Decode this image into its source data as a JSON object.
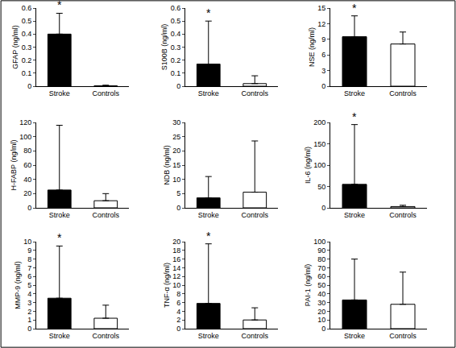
{
  "chart_data": [
    {
      "type": "bar",
      "y_label": "GFAP (ng/ml)",
      "categories": [
        "Stroke",
        "Controls"
      ],
      "values": [
        0.4,
        0.003
      ],
      "errors": [
        0.16,
        0.005
      ],
      "colors": [
        "#000000",
        "#ffffff"
      ],
      "ylim": [
        0,
        0.6
      ],
      "yticks": [
        0,
        0.1,
        0.2,
        0.3,
        0.4,
        0.5,
        0.6
      ],
      "annotations": [
        {
          "category": "Stroke",
          "text": "*"
        }
      ]
    },
    {
      "type": "bar",
      "y_label": "S100B (ng/ml)",
      "categories": [
        "Stroke",
        "Controls"
      ],
      "values": [
        0.17,
        0.02
      ],
      "errors": [
        0.33,
        0.06
      ],
      "colors": [
        "#000000",
        "#ffffff"
      ],
      "ylim": [
        0,
        0.6
      ],
      "yticks": [
        0,
        0.1,
        0.2,
        0.3,
        0.4,
        0.5,
        0.6
      ],
      "annotations": [
        {
          "category": "Stroke",
          "text": "*"
        }
      ]
    },
    {
      "type": "bar",
      "y_label": "NSE (ng/ml)",
      "categories": [
        "Stroke",
        "Controls"
      ],
      "values": [
        9.5,
        8.1
      ],
      "errors": [
        4.0,
        2.3
      ],
      "colors": [
        "#000000",
        "#ffffff"
      ],
      "ylim": [
        0,
        15
      ],
      "yticks": [
        0,
        3,
        6,
        9,
        12,
        15
      ],
      "annotations": [
        {
          "category": "Stroke",
          "text": "*"
        }
      ]
    },
    {
      "type": "bar",
      "y_label": "H-FABP (ng/ml)",
      "categories": [
        "Stroke",
        "Controls"
      ],
      "values": [
        25,
        10
      ],
      "errors": [
        91,
        10
      ],
      "colors": [
        "#000000",
        "#ffffff"
      ],
      "ylim": [
        0,
        120
      ],
      "yticks": [
        0,
        20,
        40,
        60,
        80,
        100,
        120
      ],
      "annotations": []
    },
    {
      "type": "bar",
      "y_label": "NDB (ng/ml)",
      "categories": [
        "Stroke",
        "Controls"
      ],
      "values": [
        3.5,
        5.5
      ],
      "errors": [
        7.5,
        18
      ],
      "colors": [
        "#000000",
        "#ffffff"
      ],
      "ylim": [
        0,
        30
      ],
      "yticks": [
        0,
        5,
        10,
        15,
        20,
        25,
        30
      ],
      "annotations": []
    },
    {
      "type": "bar",
      "y_label": "IL-6 (ng/ml)",
      "categories": [
        "Stroke",
        "Controls"
      ],
      "values": [
        55,
        3
      ],
      "errors": [
        140,
        3
      ],
      "colors": [
        "#000000",
        "#ffffff"
      ],
      "ylim": [
        0,
        200
      ],
      "yticks": [
        0,
        50,
        100,
        150,
        200
      ],
      "annotations": [
        {
          "category": "Stroke",
          "text": "*"
        }
      ]
    },
    {
      "type": "bar",
      "y_label": "MMP-9 (ng/ml)",
      "categories": [
        "Stroke",
        "Controls"
      ],
      "values": [
        3.5,
        1.2
      ],
      "errors": [
        6.0,
        1.5
      ],
      "colors": [
        "#000000",
        "#ffffff"
      ],
      "ylim": [
        0,
        10
      ],
      "yticks": [
        0,
        1,
        2,
        3,
        4,
        5,
        6,
        7,
        8,
        9,
        10
      ],
      "annotations": [
        {
          "category": "Stroke",
          "text": "*"
        }
      ]
    },
    {
      "type": "bar",
      "y_label": "TNF-α (ng/ml)",
      "categories": [
        "Stroke",
        "Controls"
      ],
      "values": [
        5.8,
        2.0
      ],
      "errors": [
        13.7,
        2.8
      ],
      "colors": [
        "#000000",
        "#ffffff"
      ],
      "ylim": [
        0,
        20
      ],
      "yticks": [
        0,
        2,
        4,
        6,
        8,
        10,
        12,
        14,
        16,
        18,
        20
      ],
      "annotations": [
        {
          "category": "Stroke",
          "text": "*"
        }
      ]
    },
    {
      "type": "bar",
      "y_label": "PAI-1 (ng/ml)",
      "categories": [
        "Stroke",
        "Controls"
      ],
      "values": [
        33,
        28
      ],
      "errors": [
        47,
        37
      ],
      "colors": [
        "#000000",
        "#ffffff"
      ],
      "ylim": [
        0,
        100
      ],
      "yticks": [
        0,
        10,
        20,
        30,
        40,
        50,
        60,
        70,
        80,
        90,
        100
      ],
      "annotations": []
    }
  ]
}
